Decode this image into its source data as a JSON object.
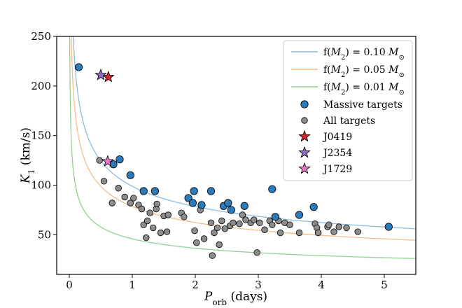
{
  "chart_data": {
    "type": "scatter",
    "title": "",
    "xlabel": "P_orb (days)",
    "xlabel_main": "P",
    "xlabel_sub": "orb",
    "xlabel_units": "(days)",
    "ylabel": "K_1 (km/s)",
    "ylabel_main": "K",
    "ylabel_sub": "1",
    "ylabel_units": "(km/s)",
    "xlim": [
      -0.2,
      5.5
    ],
    "ylim": [
      10,
      250
    ],
    "xticks": [
      0,
      1,
      2,
      3,
      4,
      5
    ],
    "yticks": [
      50,
      100,
      150,
      200,
      250
    ],
    "grid": false,
    "legend_position": "top-right",
    "curves": [
      {
        "name": "f(M2) = 0.10 M☉",
        "label_prefix": "f(",
        "label_var": "M",
        "label_sub": "2",
        "label_mid": ") = 0.10 ",
        "label_unit": "M",
        "label_unit_sub": "⊙",
        "mass_function": 0.1,
        "color": "#8fbcdd"
      },
      {
        "name": "f(M2) = 0.05 M☉",
        "label_prefix": "f(",
        "label_var": "M",
        "label_sub": "2",
        "label_mid": ") = 0.05 ",
        "label_unit": "M",
        "label_unit_sub": "⊙",
        "mass_function": 0.05,
        "color": "#f6bd86"
      },
      {
        "name": "f(M2) = 0.01 M☉",
        "label_prefix": "f(",
        "label_var": "M",
        "label_sub": "2",
        "label_mid": ") = 0.01 ",
        "label_unit": "M",
        "label_unit_sub": "⊙",
        "mass_function": 0.01,
        "color": "#93cf93"
      }
    ],
    "series": [
      {
        "name": "Massive targets",
        "marker": "circle",
        "color": "#2b7bba",
        "points": [
          [
            0.15,
            219
          ],
          [
            0.7,
            121
          ],
          [
            0.8,
            126
          ],
          [
            0.97,
            110
          ],
          [
            1.18,
            94
          ],
          [
            1.36,
            94
          ],
          [
            1.89,
            87
          ],
          [
            1.96,
            82
          ],
          [
            1.98,
            94
          ],
          [
            2.1,
            80
          ],
          [
            2.25,
            94
          ],
          [
            2.45,
            79
          ],
          [
            2.52,
            82
          ],
          [
            2.57,
            75
          ],
          [
            2.78,
            79
          ],
          [
            3.22,
            96
          ],
          [
            3.27,
            68
          ],
          [
            3.65,
            70
          ],
          [
            3.88,
            78
          ],
          [
            5.07,
            58
          ]
        ]
      },
      {
        "name": "All targets",
        "marker": "circle",
        "color": "#8c8c8c",
        "points": [
          [
            0.48,
            125
          ],
          [
            0.55,
            104
          ],
          [
            0.68,
            82
          ],
          [
            0.78,
            97
          ],
          [
            0.88,
            88
          ],
          [
            0.97,
            82
          ],
          [
            1.02,
            87
          ],
          [
            1.1,
            80
          ],
          [
            1.15,
            76
          ],
          [
            1.18,
            60
          ],
          [
            1.22,
            47
          ],
          [
            1.24,
            64
          ],
          [
            1.28,
            72
          ],
          [
            1.33,
            57
          ],
          [
            1.38,
            76
          ],
          [
            1.39,
            81
          ],
          [
            1.45,
            52
          ],
          [
            1.5,
            69
          ],
          [
            1.55,
            53
          ],
          [
            1.57,
            70
          ],
          [
            1.78,
            72
          ],
          [
            1.82,
            68
          ],
          [
            1.99,
            54
          ],
          [
            2.02,
            42
          ],
          [
            2.08,
            75
          ],
          [
            2.14,
            46
          ],
          [
            2.25,
            62
          ],
          [
            2.27,
            29
          ],
          [
            2.3,
            52
          ],
          [
            2.35,
            57
          ],
          [
            2.38,
            40
          ],
          [
            2.42,
            64
          ],
          [
            2.47,
            56
          ],
          [
            2.55,
            59
          ],
          [
            2.6,
            62
          ],
          [
            2.7,
            61
          ],
          [
            2.75,
            70
          ],
          [
            2.8,
            65
          ],
          [
            2.88,
            62
          ],
          [
            2.93,
            65
          ],
          [
            2.98,
            32
          ],
          [
            3.02,
            62
          ],
          [
            3.1,
            55
          ],
          [
            3.18,
            64
          ],
          [
            3.22,
            60
          ],
          [
            3.32,
            64
          ],
          [
            3.35,
            52
          ],
          [
            3.42,
            62
          ],
          [
            3.5,
            60
          ],
          [
            3.65,
            52
          ],
          [
            3.9,
            61
          ],
          [
            3.93,
            57
          ],
          [
            3.95,
            52
          ],
          [
            4.1,
            58
          ],
          [
            4.12,
            60
          ],
          [
            4.2,
            53
          ],
          [
            4.28,
            58
          ],
          [
            4.4,
            57
          ],
          [
            4.58,
            53
          ]
        ]
      },
      {
        "name": "J0419",
        "marker": "star",
        "color": "#d62728",
        "points": [
          [
            0.62,
            209
          ]
        ]
      },
      {
        "name": "J2354",
        "marker": "star",
        "color": "#8e6bbf",
        "points": [
          [
            0.5,
            211
          ]
        ]
      },
      {
        "name": "J1729",
        "marker": "star",
        "color": "#e377c2",
        "points": [
          [
            0.61,
            124
          ]
        ]
      }
    ]
  }
}
